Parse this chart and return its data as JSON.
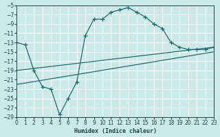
{
  "xlabel": "Humidex (Indice chaleur)",
  "bg_color": "#cce8e8",
  "line_color": "#1a6b6b",
  "xlim": [
    0,
    23
  ],
  "ylim": [
    -29,
    -5
  ],
  "xticks": [
    0,
    1,
    2,
    3,
    4,
    5,
    6,
    7,
    8,
    9,
    10,
    11,
    12,
    13,
    14,
    15,
    16,
    17,
    18,
    19,
    20,
    21,
    22,
    23
  ],
  "yticks": [
    -29,
    -27,
    -25,
    -23,
    -21,
    -19,
    -17,
    -15,
    -13,
    -11,
    -9,
    -7,
    -5
  ],
  "line1_x": [
    0,
    23
  ],
  "line1_y": [
    -19,
    -14
  ],
  "line2_x": [
    0,
    23
  ],
  "line2_y": [
    -22,
    -15
  ],
  "curve_x": [
    0,
    1,
    2,
    3,
    4,
    5,
    6,
    7,
    8,
    9,
    10,
    11,
    12,
    13,
    14,
    15,
    16,
    17,
    18,
    19,
    20,
    21,
    22,
    23
  ],
  "curve_y": [
    -13,
    -13.5,
    -19,
    -22.5,
    -23,
    -28.5,
    -25,
    -21.5,
    -11.5,
    -8,
    -8,
    -6.5,
    -6,
    -5.5,
    -6.5,
    -7.5,
    -9,
    -10,
    -13,
    -14,
    -14.5,
    -14.5,
    -14.5,
    -14
  ]
}
